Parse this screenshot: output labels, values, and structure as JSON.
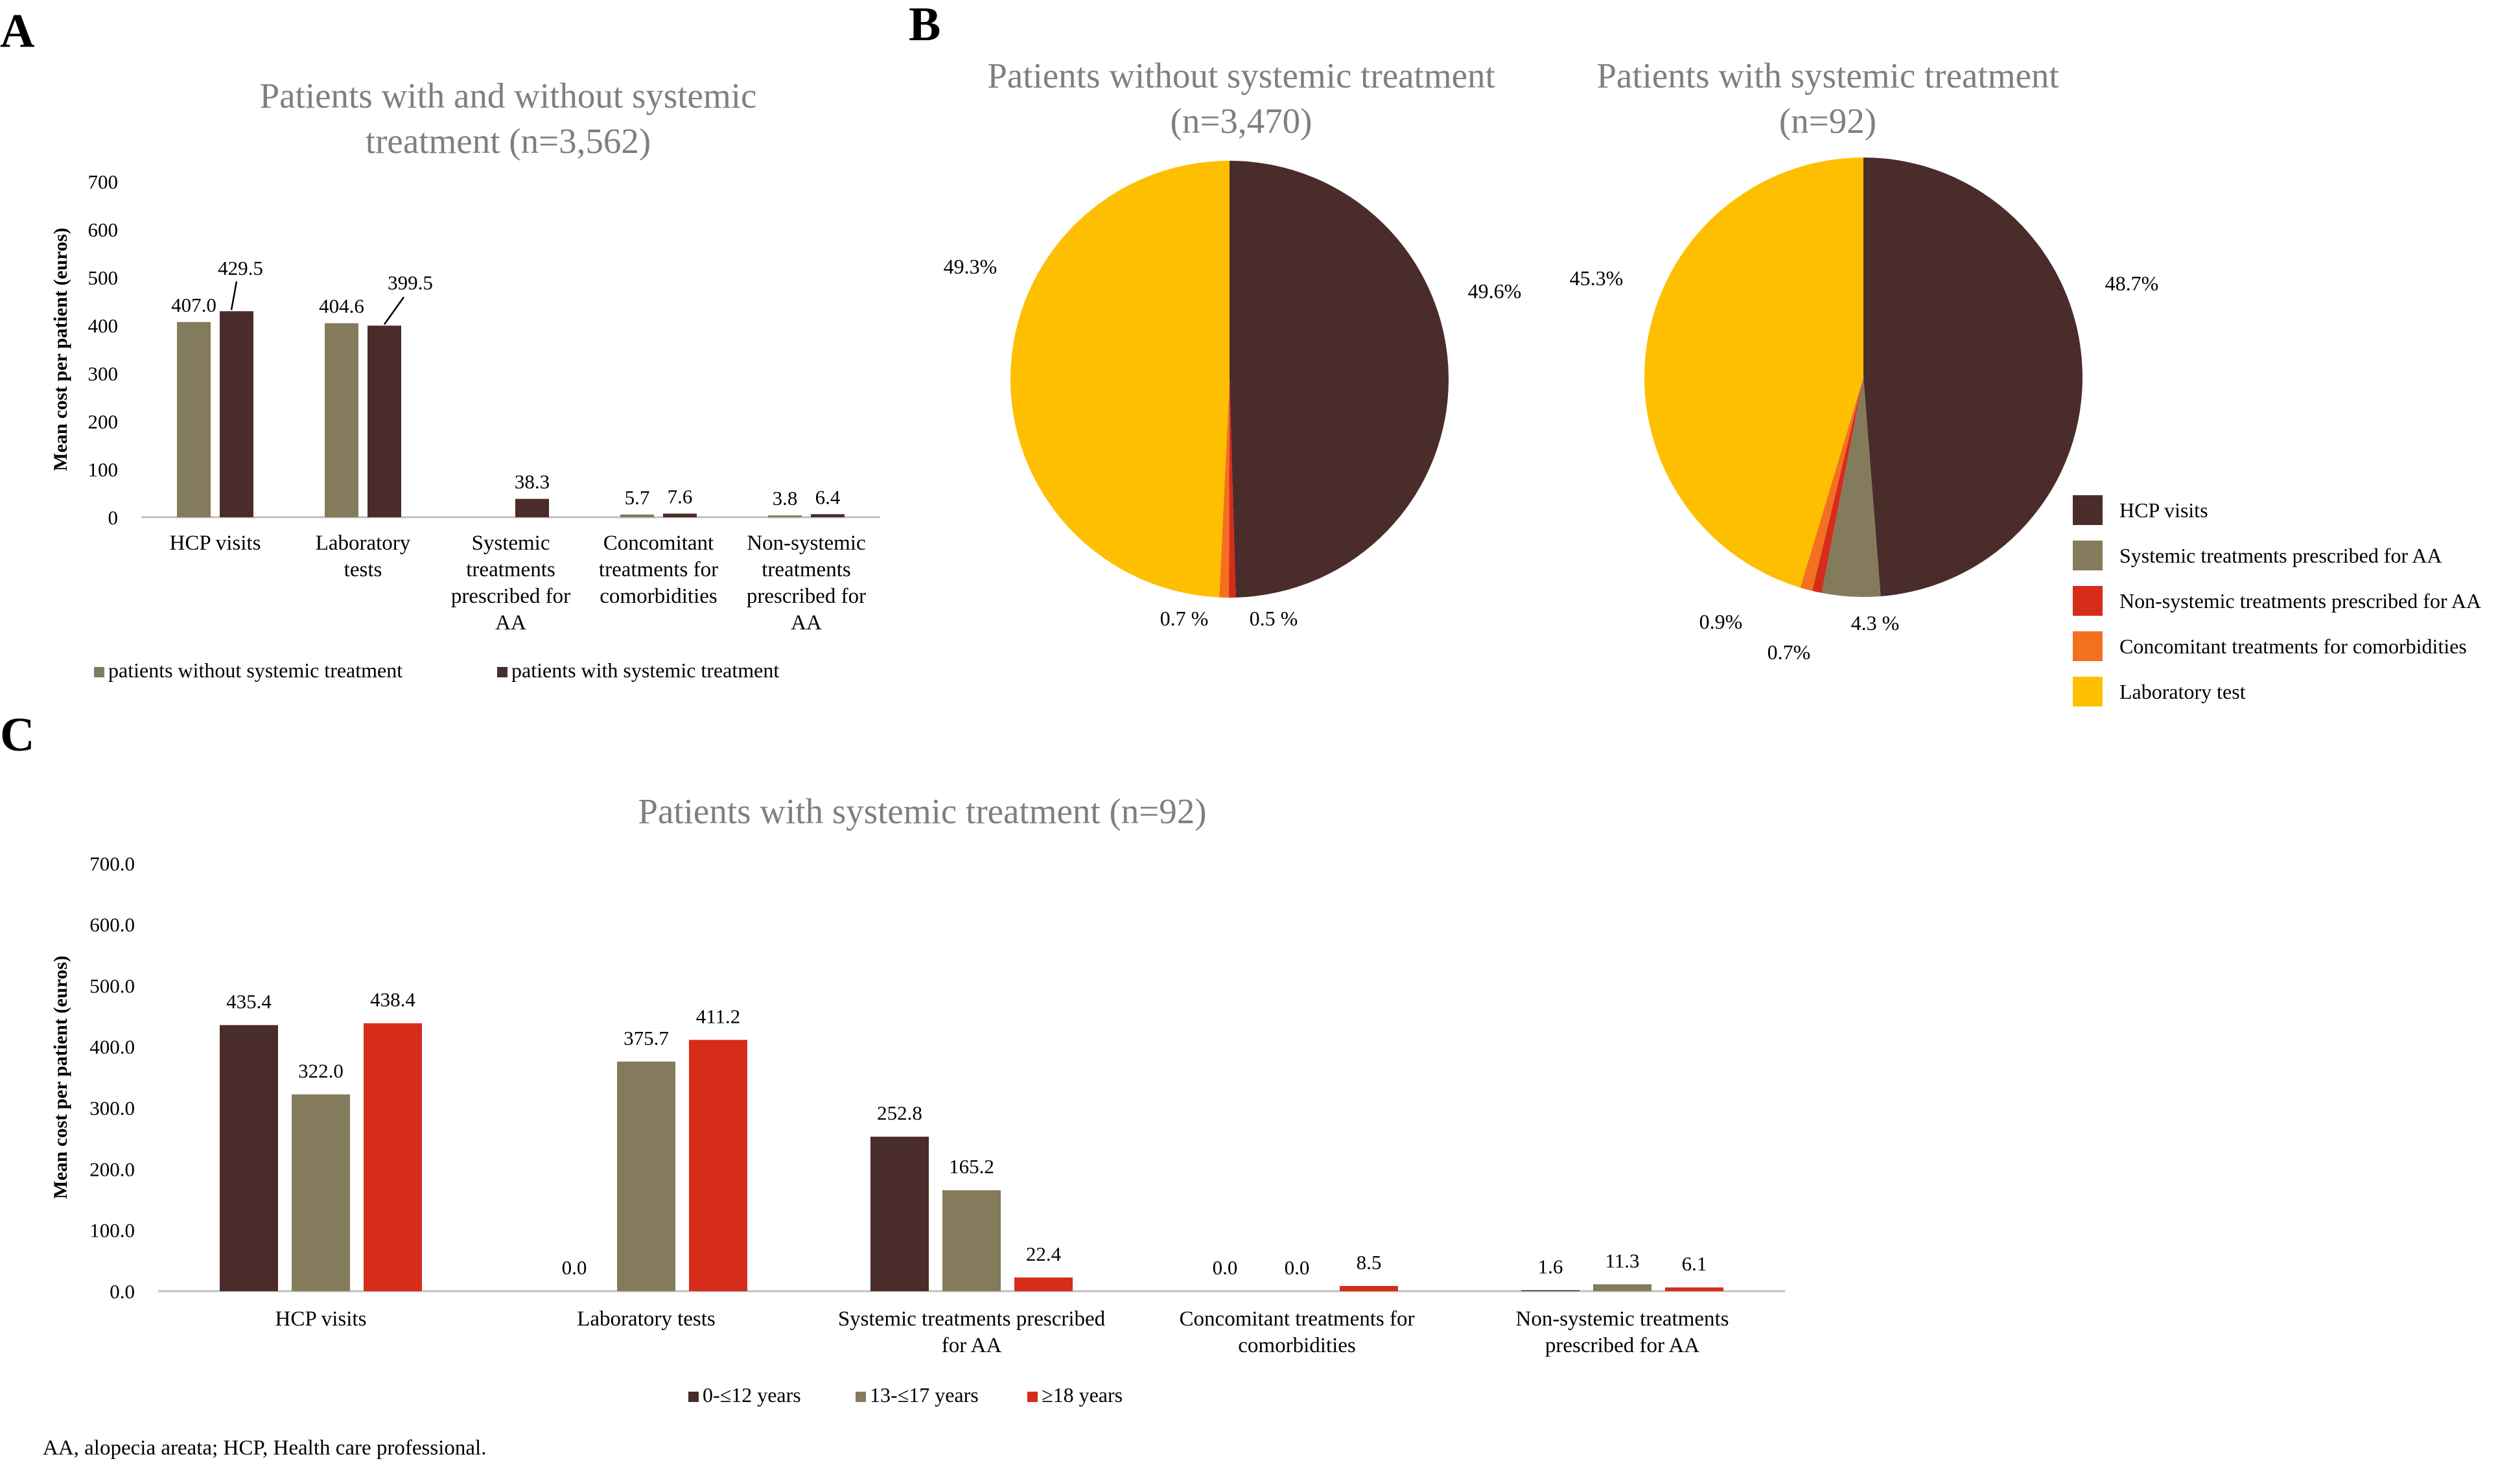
{
  "colors": {
    "dark_brown": "#4a2c2a",
    "olive": "#847b5c",
    "red": "#d62c1a",
    "orange": "#f37021",
    "yellow": "#fdbf00",
    "title_gray": "#7f7f7f",
    "axis_gray": "#bfbfbf"
  },
  "panel_labels": {
    "a": "A",
    "b": "B",
    "c": "C"
  },
  "footnote": "AA, alopecia areata; HCP, Health care professional.",
  "chart_data": [
    {
      "id": "A",
      "type": "bar",
      "title": [
        "Patients with and without systemic",
        "treatment (n=3,562)"
      ],
      "ylabel": "Mean cost per patient (euros)",
      "ylim": [
        0,
        700
      ],
      "yticks": [
        "0",
        "100",
        "200",
        "300",
        "400",
        "500",
        "600",
        "700"
      ],
      "categories": [
        [
          "HCP visits"
        ],
        [
          "Laboratory",
          "tests"
        ],
        [
          "Systemic",
          "treatments",
          "prescribed for",
          "AA"
        ],
        [
          "Concomitant",
          "treatments for",
          "comorbidities"
        ],
        [
          "Non-systemic",
          "treatments",
          "prescribed for",
          "AA"
        ]
      ],
      "series": [
        {
          "name": "patients without systemic treatment",
          "color": "#847b5c",
          "values": [
            407.0,
            404.6,
            null,
            5.7,
            3.8
          ],
          "labels": [
            "407.0",
            "404.6",
            "",
            "5.7",
            "3.8"
          ]
        },
        {
          "name": "patients with systemic treatment",
          "color": "#4a2c2a",
          "values": [
            429.5,
            399.5,
            38.3,
            7.6,
            6.4
          ],
          "labels": [
            "429.5",
            "399.5",
            "38.3",
            "7.6",
            "6.4"
          ]
        }
      ],
      "legend_position": "bottom",
      "grid": false
    },
    {
      "id": "B1",
      "type": "pie",
      "title": [
        "Patients without systemic treatment",
        "(n=3,470)"
      ],
      "slices": [
        {
          "name": "HCP visits",
          "value": 49.6,
          "label": "49.6%",
          "color": "#4a2c2a"
        },
        {
          "name": "Systemic treatments prescribed for AA",
          "value": 0,
          "label": "",
          "color": "#847b5c"
        },
        {
          "name": "Non-systemic treatments prescribed for AA",
          "value": 0.5,
          "label": "0.5 %",
          "color": "#d62c1a"
        },
        {
          "name": "Concomitant treatments for comorbidities",
          "value": 0.7,
          "label": "0.7 %",
          "color": "#f37021"
        },
        {
          "name": "Laboratory test",
          "value": 49.3,
          "label": "49.3%",
          "color": "#fdbf00"
        }
      ]
    },
    {
      "id": "B2",
      "type": "pie",
      "title": [
        "Patients with systemic treatment",
        "(n=92)"
      ],
      "slices": [
        {
          "name": "HCP visits",
          "value": 48.7,
          "label": "48.7%",
          "color": "#4a2c2a"
        },
        {
          "name": "Systemic treatments prescribed for AA",
          "value": 4.3,
          "label": "4.3 %",
          "color": "#847b5c"
        },
        {
          "name": "Non-systemic treatments prescribed for AA",
          "value": 0.7,
          "label": "0.7%",
          "color": "#d62c1a"
        },
        {
          "name": "Concomitant treatments for comorbidities",
          "value": 0.9,
          "label": "0.9%",
          "color": "#f37021"
        },
        {
          "name": "Laboratory test",
          "value": 45.3,
          "label": "45.3%",
          "color": "#fdbf00"
        }
      ],
      "legend": [
        {
          "name": "HCP visits",
          "color": "#4a2c2a"
        },
        {
          "name": "Systemic treatments prescribed for AA",
          "color": "#847b5c"
        },
        {
          "name": "Non-systemic treatments prescribed for AA",
          "color": "#d62c1a"
        },
        {
          "name": "Concomitant treatments for comorbidities",
          "color": "#f37021"
        },
        {
          "name": "Laboratory test",
          "color": "#fdbf00"
        }
      ],
      "legend_position": "right"
    },
    {
      "id": "C",
      "type": "bar",
      "title": [
        "Patients with systemic treatment (n=92)"
      ],
      "ylabel": "Mean cost per patient (euros)",
      "ylim": [
        0,
        700
      ],
      "yticks": [
        "0.0",
        "100.0",
        "200.0",
        "300.0",
        "400.0",
        "500.0",
        "600.0",
        "700.0"
      ],
      "categories": [
        [
          "HCP visits"
        ],
        [
          "Laboratory tests"
        ],
        [
          "Systemic treatments prescribed",
          "for AA"
        ],
        [
          "Concomitant treatments for",
          "comorbidities"
        ],
        [
          "Non-systemic treatments",
          "prescribed for AA"
        ]
      ],
      "series": [
        {
          "name": "0-≤12 years",
          "color": "#4a2c2a",
          "values": [
            435.4,
            0.0,
            252.8,
            0.0,
            1.6
          ],
          "labels": [
            "435.4",
            "0.0",
            "252.8",
            "0.0",
            "1.6"
          ]
        },
        {
          "name": "13-≤17 years",
          "color": "#847b5c",
          "values": [
            322.0,
            375.7,
            165.2,
            0.0,
            11.3
          ],
          "labels": [
            "322.0",
            "375.7",
            "165.2",
            "0.0",
            "11.3"
          ]
        },
        {
          "name": "≥18 years",
          "color": "#d62c1a",
          "values": [
            438.4,
            411.2,
            22.4,
            8.5,
            6.1
          ],
          "labels": [
            "438.4",
            "411.2",
            "22.4",
            "8.5",
            "6.1"
          ]
        }
      ],
      "legend_position": "bottom",
      "grid": false
    }
  ]
}
